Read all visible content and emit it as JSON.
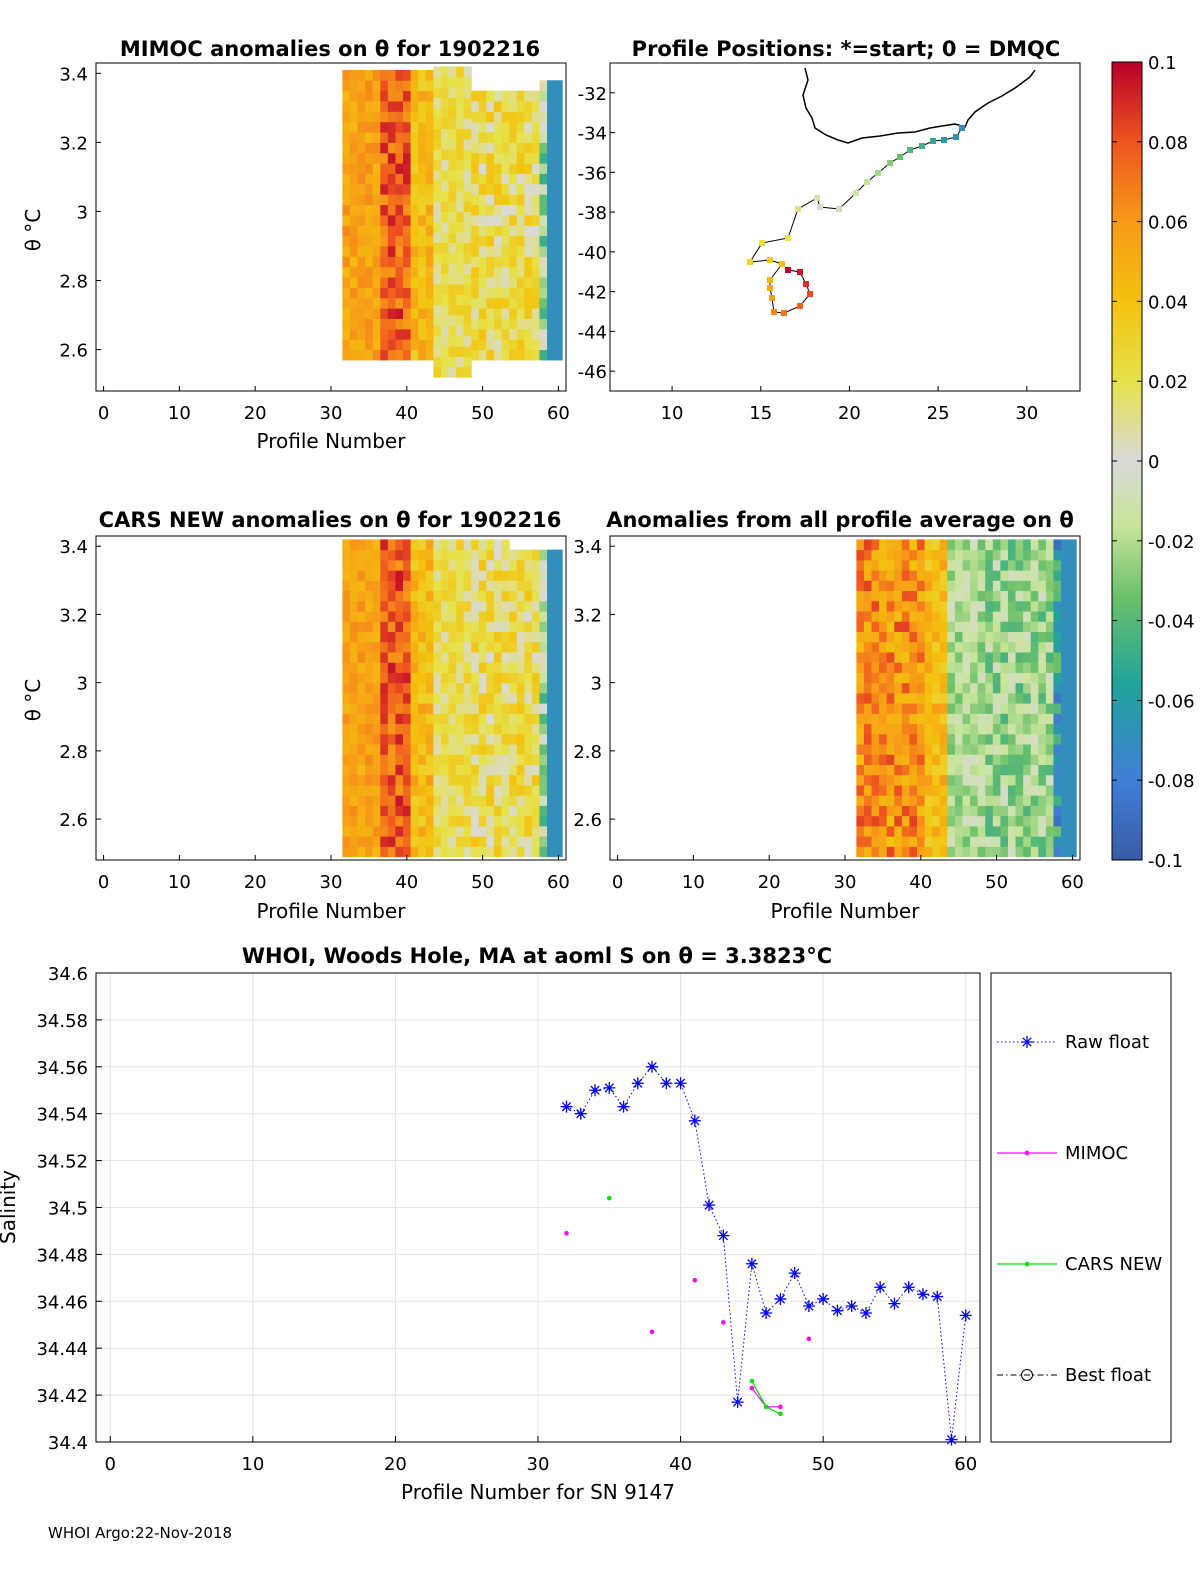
{
  "footer": "WHOI Argo:22-Nov-2018",
  "colors": {
    "raw": "#0000ff",
    "mimoc": "#ff00ff",
    "cars": "#00dd00",
    "best": "#000000"
  },
  "panels": {
    "mimoc": {
      "title": "MIMOC anomalies on θ  for 1902216",
      "xlabel": "Profile Number",
      "ylabel": "θ °C",
      "xticks": [
        0,
        10,
        20,
        30,
        40,
        50,
        60
      ],
      "yticks": [
        2.6,
        2.8,
        3,
        3.2,
        3.4
      ],
      "ylim": [
        2.48,
        3.43
      ],
      "xlim": [
        -1,
        61
      ]
    },
    "positions": {
      "title": "Profile Positions: *=start; 0 = DMQC",
      "xticks": [
        10,
        15,
        20,
        25,
        30
      ],
      "yticks": [
        -32,
        -34,
        -36,
        -38,
        -40,
        -42,
        -44,
        -46
      ],
      "xlim": [
        6.5,
        33
      ],
      "ylim": [
        -47,
        -30.5
      ]
    },
    "cars": {
      "title": "CARS NEW anomalies on θ for 1902216",
      "xlabel": "Profile Number",
      "ylabel": "θ °C",
      "xticks": [
        0,
        10,
        20,
        30,
        40,
        50,
        60
      ],
      "yticks": [
        2.6,
        2.8,
        3,
        3.2,
        3.4
      ],
      "ylim": [
        2.48,
        3.43
      ],
      "xlim": [
        -1,
        61
      ]
    },
    "allavg": {
      "title": "Anomalies from all profile average on θ",
      "xlabel": "Profile Number",
      "xticks": [
        0,
        10,
        20,
        30,
        40,
        50,
        60
      ],
      "yticks": [
        2.6,
        2.8,
        3,
        3.2,
        3.4
      ],
      "ylim": [
        2.48,
        3.43
      ],
      "xlim": [
        -1,
        61
      ]
    }
  },
  "colorbar": {
    "ticks": [
      "0.1",
      "0.08",
      "0.06",
      "0.04",
      "0.02",
      "0",
      "-0.02",
      "-0.04",
      "-0.06",
      "-0.08",
      "-0.1"
    ],
    "range": [
      -0.1,
      0.1
    ]
  },
  "chart_data": {
    "type": "line",
    "title": "WHOI, Woods Hole, MA at aoml S on θ = 3.3823°C",
    "xlabel": "Profile Number for SN 9147",
    "ylabel": "Salinity",
    "xlim": [
      -1,
      61
    ],
    "ylim": [
      34.4,
      34.6
    ],
    "xticks": [
      0,
      10,
      20,
      30,
      40,
      50,
      60
    ],
    "yticks": [
      34.4,
      34.42,
      34.44,
      34.46,
      34.48,
      34.5,
      34.52,
      34.54,
      34.56,
      34.58,
      34.6
    ],
    "grid": true,
    "legend_position": "outside-right",
    "legend": [
      "Raw float",
      "MIMOC",
      "CARS NEW",
      "Best float"
    ],
    "series": [
      {
        "name": "Raw float",
        "x": [
          32,
          33,
          34,
          35,
          36,
          37,
          38,
          39,
          40,
          41,
          42,
          43,
          44,
          45,
          46,
          47,
          48,
          49,
          50,
          51,
          52,
          53,
          54,
          55,
          56,
          57,
          58,
          59,
          60
        ],
        "y": [
          34.543,
          34.54,
          34.55,
          34.551,
          34.543,
          34.553,
          34.56,
          34.553,
          34.553,
          34.537,
          34.501,
          34.488,
          34.417,
          34.476,
          34.455,
          34.461,
          34.472,
          34.458,
          34.461,
          34.456,
          34.458,
          34.455,
          34.466,
          34.459,
          34.466,
          34.463,
          34.462,
          34.401,
          34.454
        ]
      },
      {
        "name": "MIMOC",
        "x": [
          32,
          38,
          41,
          43,
          45,
          46,
          47,
          49
        ],
        "y": [
          34.489,
          34.447,
          34.469,
          34.451,
          34.423,
          34.415,
          34.415,
          34.444
        ]
      },
      {
        "name": "CARS NEW",
        "x": [
          35,
          45,
          46,
          47
        ],
        "y": [
          34.504,
          34.426,
          34.415,
          34.412
        ]
      },
      {
        "name": "Best float",
        "x": [],
        "y": []
      }
    ]
  }
}
